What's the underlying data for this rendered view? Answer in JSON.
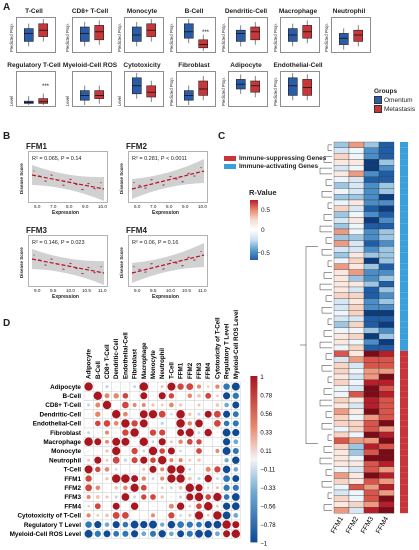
{
  "panel_a": {
    "label": "A",
    "plots": [
      {
        "title": "T-Cell",
        "ylabel": "Predicted Prop.",
        "stars": ""
      },
      {
        "title": "CD8+ T-Cell",
        "ylabel": "Predicted Prop.",
        "stars": ""
      },
      {
        "title": "Monocyte",
        "ylabel": "Predicted Prop.",
        "stars": ""
      },
      {
        "title": "B-Cell",
        "ylabel": "Predicted Prop.",
        "stars": "***"
      },
      {
        "title": "Dendritic-Cell",
        "ylabel": "Predicted Prop.",
        "stars": ""
      },
      {
        "title": "Macrophage",
        "ylabel": "Predicted Prop.",
        "stars": ""
      },
      {
        "title": "Neutrophil",
        "ylabel": "Predicted Prop.",
        "stars": ""
      },
      {
        "title": "Regulatory T-Cell",
        "ylabel": "Level",
        "stars": "***"
      },
      {
        "title": "Myeloid-Cell ROS",
        "ylabel": "Level",
        "stars": ""
      },
      {
        "title": "Cytotoxicity",
        "ylabel": "Level",
        "stars": ""
      },
      {
        "title": "Fibroblast",
        "ylabel": "Predicted Prop.",
        "stars": ""
      },
      {
        "title": "Adipocyte",
        "ylabel": "Predicted Prop.",
        "stars": ""
      },
      {
        "title": "Endothelial-Cell",
        "ylabel": "Predicted Prop.",
        "stars": ""
      }
    ],
    "legend": {
      "title": "Groups",
      "items": [
        {
          "name": "Omentum",
          "color": "#2a5ca8"
        },
        {
          "name": "Metastasis",
          "color": "#c8363a"
        }
      ]
    }
  },
  "panel_b": {
    "label": "B",
    "plots": [
      {
        "title": "FFM1",
        "r2": "R² = 0.065",
        "p": "P = 0.14",
        "ylabel": "Disease Score",
        "xlabel": "Expression",
        "xticks": [
          "6.0",
          "7.0",
          "8.0",
          "9.0",
          "10.0"
        ],
        "slope": -1
      },
      {
        "title": "FFM2",
        "r2": "R² = 0.281",
        "p": "P < 0.0011",
        "ylabel": "Disease Score",
        "xlabel": "Expression",
        "xticks": [
          "6.0",
          "7.0",
          "8.0",
          "9.0",
          "10.0"
        ],
        "slope": 1
      },
      {
        "title": "FFM3",
        "r2": "R² = 0.146",
        "p": "P = 0.023",
        "ylabel": "Disease Score",
        "xlabel": "Expression",
        "xticks": [
          "9.0",
          "9.5",
          "10.0",
          "10.5",
          "11.0"
        ],
        "slope": -1
      },
      {
        "title": "FFM4",
        "r2": "R² = 0.06",
        "p": "P = 0.16",
        "ylabel": "Disease Score",
        "xlabel": "Expression",
        "xticks": [
          "9.0",
          "9.5",
          "10.0",
          "10.5",
          "11.0"
        ],
        "slope": 1
      }
    ]
  },
  "panel_c": {
    "label": "C",
    "legend_items": [
      {
        "name": "Immune-suppressing Genes",
        "color": "#c8363a"
      },
      {
        "name": "Immune-activating Genes",
        "color": "#3aa0dc"
      }
    ],
    "colorbar_title": "R-Value",
    "colorbar_ticks": [
      "0.5",
      "0",
      "−0.5"
    ],
    "columns": [
      "FFM1",
      "FFM2",
      "FFM3",
      "FFM4"
    ]
  },
  "panel_d": {
    "label": "D",
    "labels": [
      "Adipocyte",
      "B-Cell",
      "CD8+ T-Cell",
      "Dendritic-Cell",
      "Endothelial-Cell",
      "Fibroblast",
      "Macrophage",
      "Monocyte",
      "Neutrophil",
      "T-Cell",
      "FFM1",
      "FFM2",
      "FFM3",
      "FFM4",
      "Cytotoxicity of T-Cell",
      "Regulatory T Level",
      "Myeloid-Cell ROS Level"
    ],
    "colorbar_ticks": [
      "1",
      "0.78",
      "0.56",
      "0.33",
      "0.11",
      "−0.11",
      "−0.33",
      "−0.56",
      "−0.78",
      "−1"
    ]
  },
  "colors": {
    "pos": "#c8363a",
    "neg": "#2a5ca8",
    "blue_light": "#3aa0dc"
  }
}
